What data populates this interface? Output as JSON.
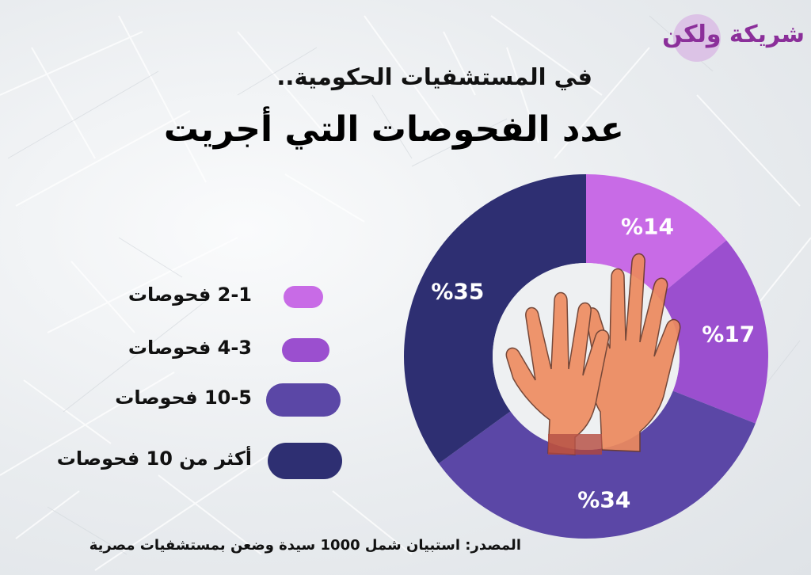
{
  "logo": {
    "text": "شريكة ولكن"
  },
  "header": {
    "subtitle": "في المستشفيات الحكومية..",
    "title": "عدد الفحوصات التي أجريت"
  },
  "chart_data": {
    "type": "pie",
    "title": "عدد الفحوصات التي أجريت",
    "categories": [
      "1-2 فحوصات",
      "3-4 فحوصات",
      "5-10 فحوصات",
      "أكثر من 10 فحوصات"
    ],
    "legend_labels": [
      "2-1 فحوصات",
      "4-3 فحوصات",
      "10-5 فحوصات",
      "أكثر من 10 فحوصات"
    ],
    "values": [
      14,
      17,
      34,
      35
    ],
    "data_labels": [
      "%14",
      "%17",
      "%34",
      "%35"
    ],
    "colors": [
      "#c86be6",
      "#9b4fcf",
      "#5b47a6",
      "#2e2f72"
    ],
    "style": "donut",
    "legend_position": "left"
  },
  "footer": {
    "source": "المصدر: استبيان شمل 1000 سيدة وضعن بمستشفيات مصرية"
  },
  "center_icon": "gloved-hands-icon"
}
